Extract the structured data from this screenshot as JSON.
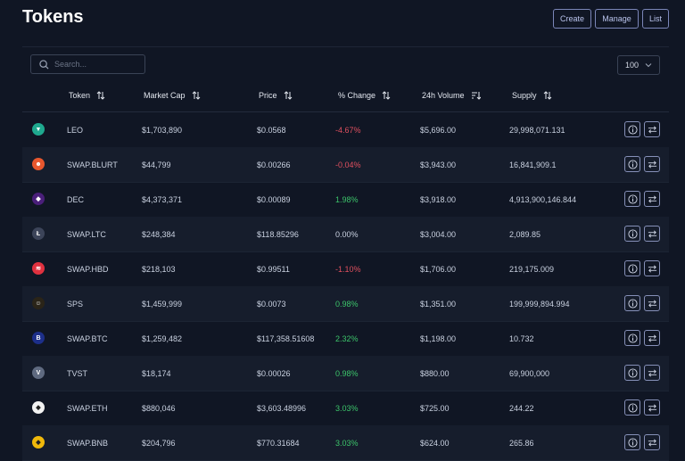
{
  "header": {
    "title": "Tokens",
    "buttons": {
      "create": "Create",
      "manage": "Manage",
      "list": "List"
    }
  },
  "search": {
    "placeholder": "Search..."
  },
  "per_page": {
    "selected": "100"
  },
  "columns": {
    "token": "Token",
    "market_cap": "Market Cap",
    "price": "Price",
    "change": "% Change",
    "volume": "24h Volume",
    "supply": "Supply"
  },
  "rows": [
    {
      "token": "LEO",
      "market_cap": "$1,703,890",
      "price": "$0.0568",
      "change": "-4.67%",
      "trend": "neg",
      "volume": "$5,696.00",
      "supply": "29,998,071.131",
      "logo_color": "#1fa98f",
      "logo_glyph": "▼"
    },
    {
      "token": "SWAP.BLURT",
      "market_cap": "$44,799",
      "price": "$0.00266",
      "change": "-0.04%",
      "trend": "neg",
      "volume": "$3,943.00",
      "supply": "16,841,909.1",
      "logo_color": "#e8572e",
      "logo_glyph": "☻"
    },
    {
      "token": "DEC",
      "market_cap": "$4,373,371",
      "price": "$0.00089",
      "change": "1.98%",
      "trend": "pos",
      "volume": "$3,918.00",
      "supply": "4,913,900,146.844",
      "logo_color": "#4a1f7a",
      "logo_glyph": "◆"
    },
    {
      "token": "SWAP.LTC",
      "market_cap": "$248,384",
      "price": "$118.85296",
      "change": "0.00%",
      "trend": "zero",
      "volume": "$3,004.00",
      "supply": "2,089.85",
      "logo_color": "#3c4459",
      "logo_glyph": "Ł"
    },
    {
      "token": "SWAP.HBD",
      "market_cap": "$218,103",
      "price": "$0.99511",
      "change": "-1.10%",
      "trend": "neg",
      "volume": "$1,706.00",
      "supply": "219,175.009",
      "logo_color": "#e0313f",
      "logo_glyph": "≋"
    },
    {
      "token": "SPS",
      "market_cap": "$1,459,999",
      "price": "$0.0073",
      "change": "0.98%",
      "trend": "pos",
      "volume": "$1,351.00",
      "supply": "199,999,894.994",
      "logo_color": "#2a2418",
      "logo_glyph": "☺"
    },
    {
      "token": "SWAP.BTC",
      "market_cap": "$1,259,482",
      "price": "$117,358.51608",
      "change": "2.32%",
      "trend": "pos",
      "volume": "$1,198.00",
      "supply": "10.732",
      "logo_color": "#1d2f8a",
      "logo_glyph": "B"
    },
    {
      "token": "TVST",
      "market_cap": "$18,174",
      "price": "$0.00026",
      "change": "0.98%",
      "trend": "pos",
      "volume": "$880.00",
      "supply": "69,900,000",
      "logo_color": "#5f6a80",
      "logo_glyph": "V"
    },
    {
      "token": "SWAP.ETH",
      "market_cap": "$880,046",
      "price": "$3,603.48996",
      "change": "3.03%",
      "trend": "pos",
      "volume": "$725.00",
      "supply": "244.22",
      "logo_color": "#f2f2f2",
      "logo_glyph": "◆"
    },
    {
      "token": "SWAP.BNB",
      "market_cap": "$204,796",
      "price": "$770.31684",
      "change": "3.03%",
      "trend": "pos",
      "volume": "$624.00",
      "supply": "265.86",
      "logo_color": "#f0b90b",
      "logo_glyph": "◆"
    }
  ],
  "icons": {
    "search": "search-icon",
    "sort": "sort-icon",
    "sort_active": "sort-desc-icon",
    "info": "info-icon",
    "swap": "swap-icon",
    "chevron": "chevron-down-icon"
  },
  "colors": {
    "background": "#101624",
    "negative": "#e0505f",
    "positive": "#3cc46a",
    "button_border": "#7b86b8"
  }
}
